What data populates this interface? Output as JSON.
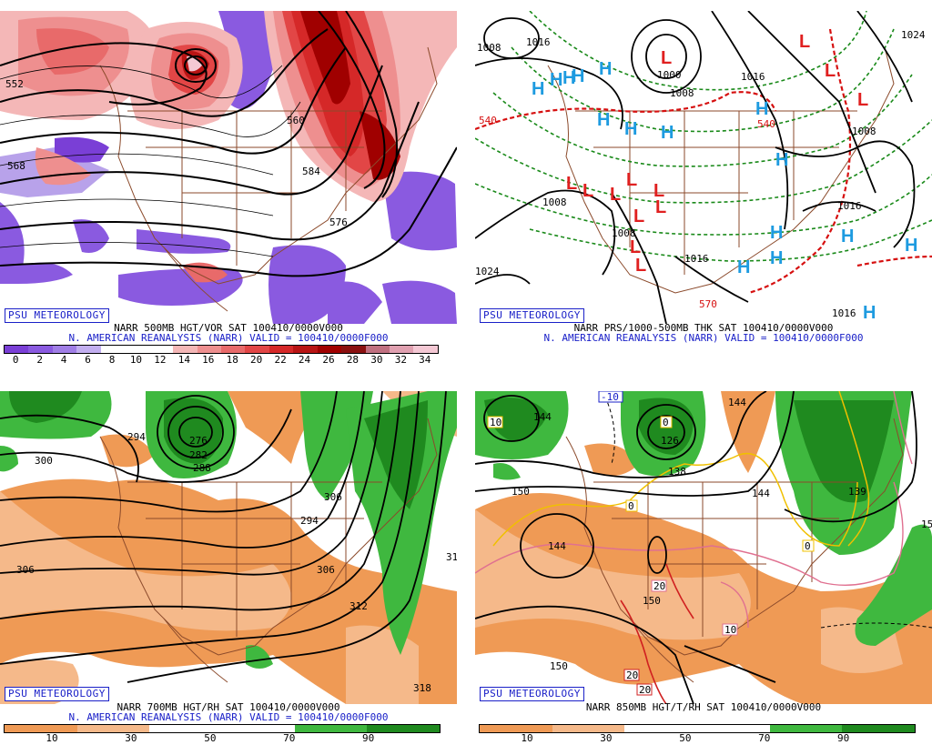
{
  "panels": [
    {
      "id": "vor500",
      "badge": "PSU METEOROLOGY",
      "caption1": "NARR 500MB HGT/VOR SAT 100410/0000V000",
      "caption2": "N. AMERICAN REANALYSIS (NARR) VALID = 100410/0000F000",
      "colorbar": {
        "ticks": [
          "0",
          "2",
          "4",
          "6",
          "8",
          "10",
          "12",
          "14",
          "16",
          "18",
          "20",
          "22",
          "24",
          "26",
          "28",
          "30",
          "32",
          "34"
        ],
        "colors": [
          "#7a3fd6",
          "#8a5ae0",
          "#a07ee6",
          "#c2aef0",
          "#ffffff",
          "#ffffff",
          "#ffffff",
          "#f4b7b7",
          "#ee8f8f",
          "#e86a6a",
          "#e24646",
          "#d52828",
          "#b81414",
          "#a00000",
          "#8a1010",
          "#c07080",
          "#e0a0b0",
          "#f4c8d4"
        ]
      },
      "contour_labels": [
        "552",
        "560",
        "568",
        "576",
        "584",
        "576",
        "552",
        "576",
        "584"
      ]
    },
    {
      "id": "prs",
      "badge": "PSU METEOROLOGY",
      "caption1": "NARR PRS/1000-500MB THK SAT 100410/0000V000",
      "caption2": "N. AMERICAN REANALYSIS (NARR) VALID = 100410/0000F000",
      "contour_labels": [
        "1008",
        "1016",
        "1024",
        "1000",
        "1008",
        "1016",
        "1008",
        "1016",
        "1008",
        "1016",
        "1024",
        "1016",
        "1008",
        "1016",
        "540",
        "540",
        "570"
      ],
      "high_letter": "H",
      "low_letter": "L",
      "colors": {
        "high": "#1e9be0",
        "low": "#e02020",
        "thickness": "#1a8a1a",
        "freeze": "#d61010"
      }
    },
    {
      "id": "rh700",
      "badge": "PSU METEOROLOGY",
      "caption1": "NARR 700MB HGT/RH SAT 100410/0000V000",
      "caption2": "N. AMERICAN REANALYSIS (NARR) VALID = 100410/0000F000",
      "colorbar": {
        "ticks": [
          "10",
          "30",
          "50",
          "70",
          "90"
        ],
        "colors": [
          "#ef9a55",
          "#f5b98a",
          "#ffffff",
          "#ffffff",
          "#3fb83f",
          "#1f8a1f"
        ]
      },
      "contour_labels": [
        "300",
        "294",
        "276",
        "282",
        "288",
        "306",
        "306",
        "306",
        "312",
        "318",
        "294",
        "31"
      ]
    },
    {
      "id": "rh850",
      "badge": "PSU METEOROLOGY",
      "caption1": "NARR 850MB HGT/T/RH SAT 100410/0000V000",
      "caption2": "",
      "colorbar": {
        "ticks": [
          "10",
          "30",
          "50",
          "70",
          "90"
        ],
        "colors": [
          "#ef9a55",
          "#f5b98a",
          "#ffffff",
          "#ffffff",
          "#3fb83f",
          "#1f8a1f"
        ]
      },
      "contour_labels": [
        "-10",
        "144",
        "126",
        "138",
        "144",
        "150",
        "150",
        "139",
        "144",
        "150",
        "144",
        "15"
      ],
      "temp_labels": [
        "10",
        "0",
        "0",
        "0",
        "20",
        "20",
        "20",
        "10",
        "20"
      ]
    }
  ]
}
